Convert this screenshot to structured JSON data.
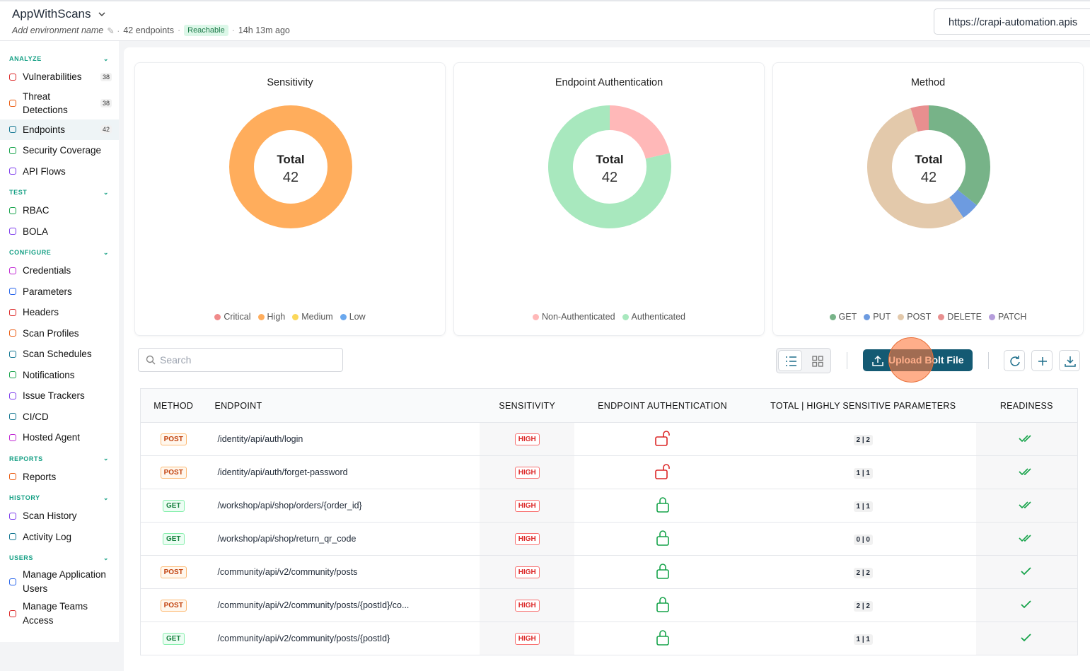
{
  "header": {
    "title": "AppWithScans",
    "environment": "Add environment name",
    "endpoints": "42 endpoints",
    "status": "Reachable",
    "updated": "14h 13m ago",
    "url": "https://crapi-automation.apis"
  },
  "sidebar": {
    "sections": [
      {
        "title": "ANALYZE",
        "items": [
          {
            "label": "Vulnerabilities",
            "count": 38
          },
          {
            "label": "Threat Detections",
            "count": 38
          },
          {
            "label": "Endpoints",
            "count": 42
          },
          {
            "label": "Security Coverage"
          },
          {
            "label": "API Flows"
          }
        ]
      },
      {
        "title": "TEST",
        "items": [
          {
            "label": "RBAC"
          },
          {
            "label": "BOLA"
          }
        ]
      },
      {
        "title": "CONFIGURE",
        "items": [
          {
            "label": "Credentials"
          },
          {
            "label": "Parameters"
          },
          {
            "label": "Headers"
          },
          {
            "label": "Scan Profiles"
          },
          {
            "label": "Scan Schedules"
          },
          {
            "label": "Notifications"
          },
          {
            "label": "Issue Trackers"
          },
          {
            "label": "CI/CD"
          },
          {
            "label": "Hosted Agent"
          }
        ]
      },
      {
        "title": "REPORTS",
        "items": [
          {
            "label": "Reports"
          }
        ]
      },
      {
        "title": "HISTORY",
        "items": [
          {
            "label": "Scan History"
          },
          {
            "label": "Activity Log"
          }
        ]
      },
      {
        "title": "USERS",
        "items": [
          {
            "label": "Manage Application Users"
          },
          {
            "label": "Manage Teams Access"
          }
        ]
      }
    ]
  },
  "chart_data": [
    {
      "type": "donut",
      "title": "Sensitivity",
      "center_label": "Total",
      "total": 42,
      "categories": [
        "Critical",
        "High",
        "Medium",
        "Low"
      ],
      "values": [
        0,
        42,
        0,
        0
      ],
      "colors": [
        "#f08a8a",
        "#ffad5c",
        "#fbd85a",
        "#6aa8ee"
      ]
    },
    {
      "type": "donut",
      "title": "Endpoint Authentication",
      "center_label": "Total",
      "total": 42,
      "categories": [
        "Non-Authenticated",
        "Authenticated"
      ],
      "values": [
        9,
        33
      ],
      "colors": [
        "#ffb8b8",
        "#a8e8be"
      ]
    },
    {
      "type": "donut",
      "title": "Method",
      "center_label": "Total",
      "total": 42,
      "categories": [
        "GET",
        "PUT",
        "POST",
        "DELETE",
        "PATCH"
      ],
      "values": [
        15,
        2,
        23,
        2,
        0
      ],
      "colors": [
        "#77b388",
        "#6d9be0",
        "#e3c9ab",
        "#e88f8f",
        "#b59ddb"
      ]
    }
  ],
  "toolbar": {
    "search": "Search",
    "upload": "Upload Bolt File"
  },
  "table": {
    "columns": [
      "METHOD",
      "ENDPOINT",
      "SENSITIVITY",
      "ENDPOINT AUTHENTICATION",
      "TOTAL | HIGHLY SENSITIVE PARAMETERS",
      "READINESS"
    ],
    "rows": [
      [
        "POST",
        "/identity/api/auth/login",
        "HIGH",
        "2 | 2"
      ],
      [
        "POST",
        "/identity/api/auth/forget-password",
        "HIGH",
        "1 | 1"
      ],
      [
        "GET",
        "/workshop/api/shop/orders/{order_id}",
        "HIGH",
        "1 | 1"
      ],
      [
        "GET",
        "/workshop/api/shop/return_qr_code",
        "HIGH",
        "0 | 0"
      ],
      [
        "POST",
        "/community/api/v2/community/posts",
        "HIGH",
        "2 | 2"
      ],
      [
        "POST",
        "/community/api/v2/community/posts/{postId}/co...",
        "HIGH",
        "2 | 2"
      ],
      [
        "GET",
        "/community/api/v2/community/posts/{postId}",
        "HIGH",
        "1 | 1"
      ]
    ]
  }
}
